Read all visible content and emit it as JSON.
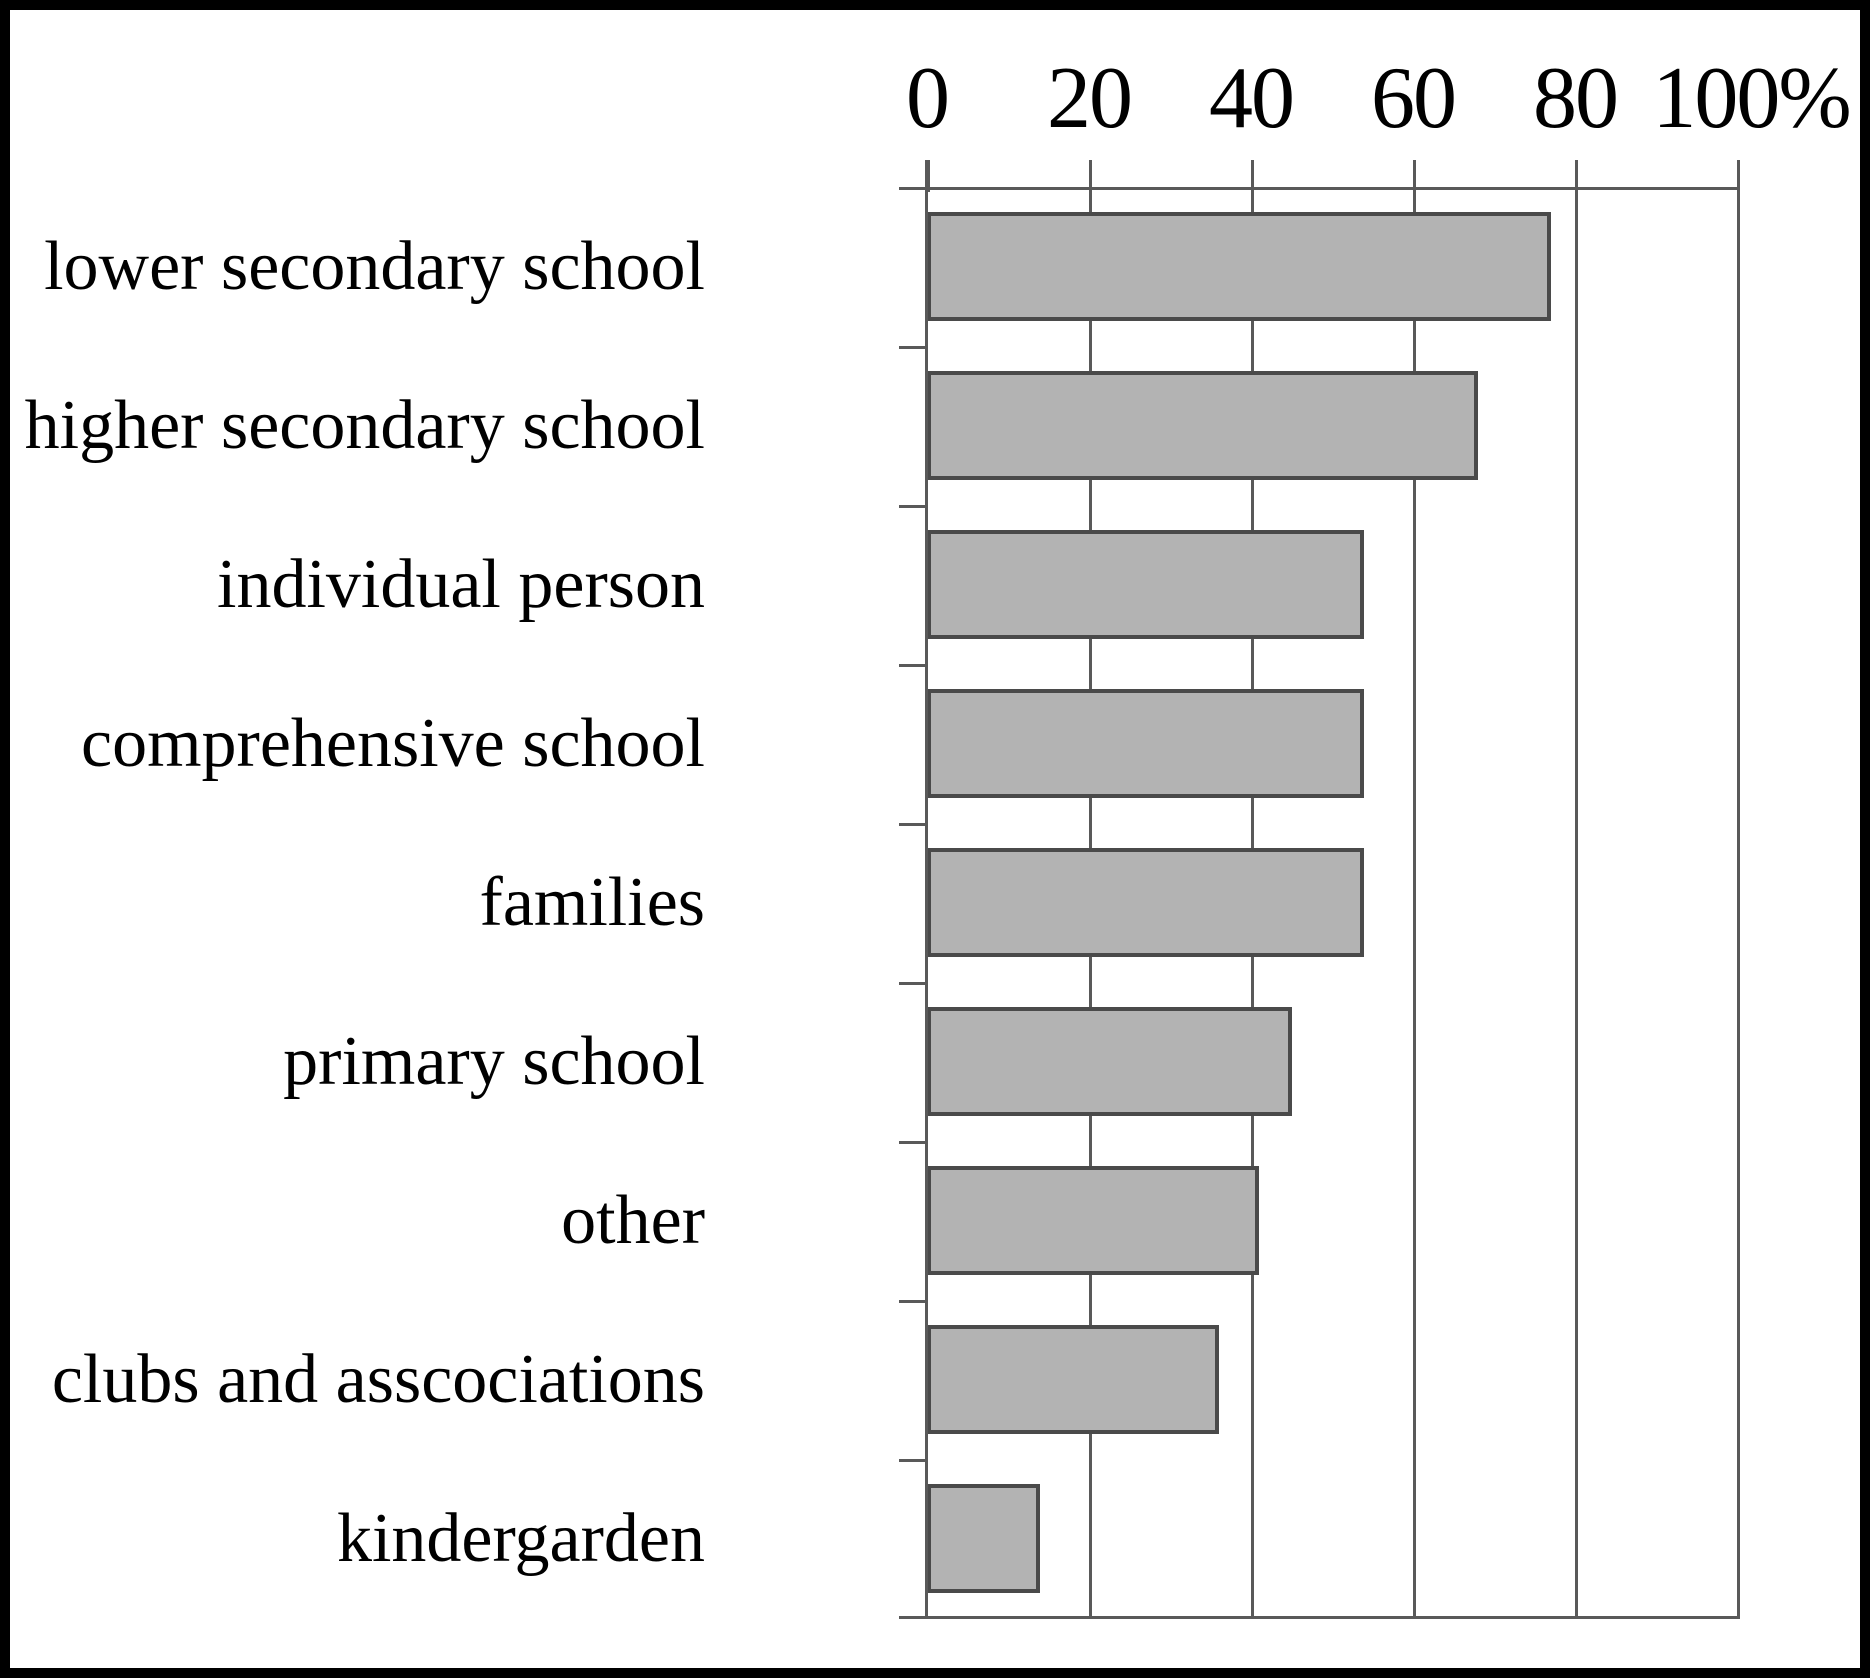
{
  "chart_data": {
    "type": "bar",
    "orientation": "horizontal",
    "title": "",
    "xlabel": "",
    "ylabel": "",
    "categories": [
      "lower secondary school",
      "higher secondary school",
      "individual person",
      "comprehensive school",
      "families",
      "primary school",
      "other",
      "clubs and asscociations",
      "kindergarden"
    ],
    "values": [
      77,
      68,
      54,
      54,
      54,
      45,
      41,
      36,
      14
    ],
    "xlim": [
      0,
      100
    ],
    "x_ticks": [
      0,
      20,
      40,
      60,
      80,
      100
    ],
    "x_tick_labels": [
      "0",
      "20",
      "40",
      "60",
      "80",
      "100%"
    ],
    "grid": true,
    "legend": "none",
    "colors": {
      "bar_fill": "#b3b3b3",
      "bar_border": "#4a4a4a",
      "axis": "#595959",
      "text": "#000000",
      "background": "#ffffff",
      "frame_border": "#000000"
    }
  }
}
